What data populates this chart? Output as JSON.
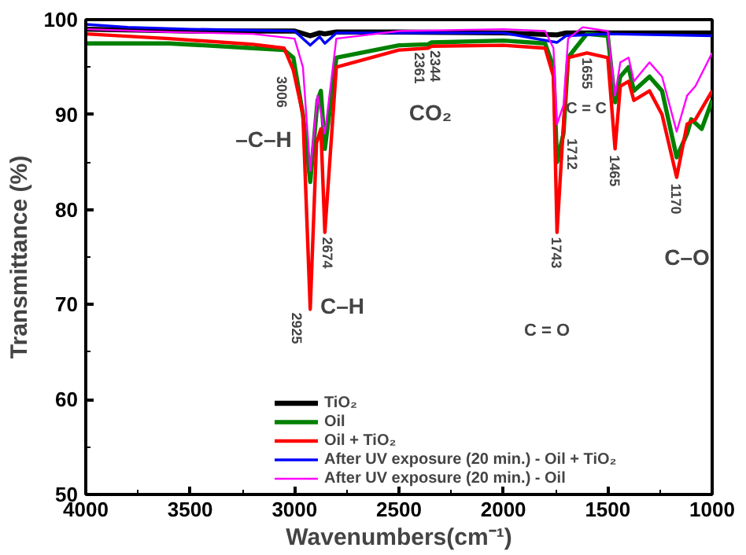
{
  "chart_data": {
    "type": "line",
    "xlabel": "Wavenumbers(cm⁻¹)",
    "ylabel": "Transmittance (%)",
    "xlim": [
      4000,
      1000
    ],
    "ylim": [
      50,
      100
    ],
    "xticks": [
      4000,
      3500,
      3000,
      2500,
      2000,
      1500,
      1000
    ],
    "yticks": [
      50,
      60,
      70,
      80,
      90,
      100
    ],
    "grid": false,
    "legend": "bottom",
    "marker": "none",
    "line_style": "solid",
    "series": [
      {
        "name": "TiO₂",
        "color": "#000000",
        "x": [
          4000,
          3500,
          3000,
          2925,
          2880,
          2855,
          2800,
          2500,
          2000,
          1743,
          1700,
          1500,
          1000
        ],
        "values": [
          99.0,
          98.8,
          98.8,
          98.3,
          98.6,
          98.5,
          98.7,
          98.7,
          98.6,
          98.4,
          98.6,
          98.6,
          98.6
        ]
      },
      {
        "name": "Oil",
        "color": "#008000",
        "x": [
          4000,
          3600,
          3200,
          3050,
          3006,
          2960,
          2925,
          2890,
          2874,
          2855,
          2800,
          2500,
          2361,
          2344,
          2000,
          1800,
          1760,
          1743,
          1712,
          1690,
          1655,
          1600,
          1500,
          1465,
          1440,
          1400,
          1375,
          1300,
          1240,
          1170,
          1120,
          1100,
          1050,
          1000
        ],
        "values": [
          97.5,
          97.5,
          97.0,
          96.8,
          96.0,
          90,
          82.9,
          91.5,
          92.5,
          86.4,
          96,
          97.3,
          97.4,
          97.6,
          97.8,
          97.5,
          95,
          85,
          88,
          96,
          97,
          98.5,
          98.3,
          91.3,
          94,
          95,
          92.5,
          94,
          92.5,
          85.5,
          88,
          89.5,
          88.5,
          91.5
        ]
      },
      {
        "name": "Oil + TiO₂",
        "color": "#ff0000",
        "x": [
          4000,
          3600,
          3200,
          3050,
          3006,
          2960,
          2925,
          2895,
          2874,
          2855,
          2800,
          2500,
          2361,
          2344,
          2000,
          1800,
          1760,
          1743,
          1712,
          1690,
          1600,
          1500,
          1465,
          1440,
          1400,
          1375,
          1300,
          1240,
          1170,
          1120,
          1080,
          1000
        ],
        "values": [
          98.5,
          98,
          97.4,
          97.0,
          94.7,
          90,
          69.5,
          87,
          88.5,
          77.6,
          95,
          96.8,
          97.0,
          97.2,
          97.3,
          97.0,
          94,
          77.6,
          89,
          96,
          96.5,
          96,
          86.4,
          93,
          93.5,
          91.5,
          92.5,
          90,
          83.4,
          89,
          89.5,
          92.5
        ]
      },
      {
        "name": "After UV exposure (20 min.) - Oil + TiO₂",
        "color": "#0000ff",
        "x": [
          4000,
          3800,
          3500,
          3000,
          2925,
          2880,
          2855,
          2800,
          2500,
          2000,
          1743,
          1700,
          1500,
          1000
        ],
        "values": [
          99.5,
          99.2,
          99.0,
          98.8,
          97.3,
          98.2,
          97.5,
          98.6,
          98.6,
          98.6,
          97.6,
          98.3,
          98.5,
          98.3
        ]
      },
      {
        "name": "After UV exposure (20 min.) - Oil",
        "color": "#ff00ff",
        "x": [
          4000,
          3600,
          3200,
          3000,
          2960,
          2925,
          2890,
          2855,
          2800,
          2500,
          2000,
          1800,
          1760,
          1743,
          1712,
          1690,
          1620,
          1500,
          1465,
          1440,
          1400,
          1375,
          1300,
          1240,
          1170,
          1120,
          1080,
          1000
        ],
        "values": [
          99,
          98.7,
          98.5,
          98,
          95,
          84.1,
          92,
          88,
          98,
          98.8,
          99,
          98.8,
          97,
          89,
          91,
          98,
          99.2,
          98.8,
          92,
          95.5,
          96,
          93.5,
          95.5,
          94,
          88.2,
          92,
          93,
          96.5
        ]
      }
    ],
    "annotations": [
      {
        "text": "3006",
        "x": 3006,
        "y": 94.7
      },
      {
        "text": "2925",
        "x": 2925,
        "y": 69.5
      },
      {
        "text": "2674",
        "x": 2855,
        "y": 77.6
      },
      {
        "text": "2361",
        "x": 2361,
        "y": 97.4
      },
      {
        "text": "2344",
        "x": 2344,
        "y": 97.6
      },
      {
        "text": "1743",
        "x": 1743,
        "y": 77.6
      },
      {
        "text": "1712",
        "x": 1712,
        "y": 88
      },
      {
        "text": "1655",
        "x": 1655,
        "y": 97
      },
      {
        "text": "1465",
        "x": 1465,
        "y": 86.4
      },
      {
        "text": "1170",
        "x": 1170,
        "y": 83.4
      },
      "–C–H",
      "C–H",
      "CO₂",
      "C = C",
      "C = O",
      "C–O"
    ]
  }
}
